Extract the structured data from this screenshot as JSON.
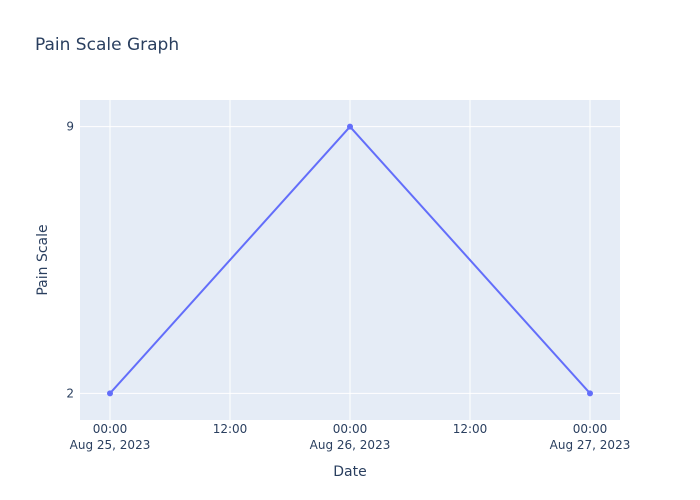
{
  "chart_data": {
    "type": "line",
    "title": "Pain Scale Graph",
    "xlabel": "Date",
    "ylabel": "Pain Scale",
    "x": [
      "2023-08-25T00:00",
      "2023-08-26T00:00",
      "2023-08-27T00:00"
    ],
    "xlim": [
      "2023-08-24T21:00",
      "2023-08-27T03:00"
    ],
    "ylim": [
      1.3,
      9.7
    ],
    "grid": true,
    "series": [
      {
        "name": "Pain Scale",
        "values": [
          2,
          9,
          2
        ]
      }
    ],
    "x_ticks": [
      {
        "time": "2023-08-25T00:00",
        "label": "00:00",
        "sublabel": "Aug 25, 2023"
      },
      {
        "time": "2023-08-25T12:00",
        "label": "12:00",
        "sublabel": ""
      },
      {
        "time": "2023-08-26T00:00",
        "label": "00:00",
        "sublabel": "Aug 26, 2023"
      },
      {
        "time": "2023-08-26T12:00",
        "label": "12:00",
        "sublabel": ""
      },
      {
        "time": "2023-08-27T00:00",
        "label": "00:00",
        "sublabel": "Aug 27, 2023"
      }
    ],
    "y_ticks": [
      2,
      9
    ]
  },
  "colors": {
    "plot_background": "#e5ecf6",
    "line": "#636efa",
    "text": "#2a3f5f"
  }
}
